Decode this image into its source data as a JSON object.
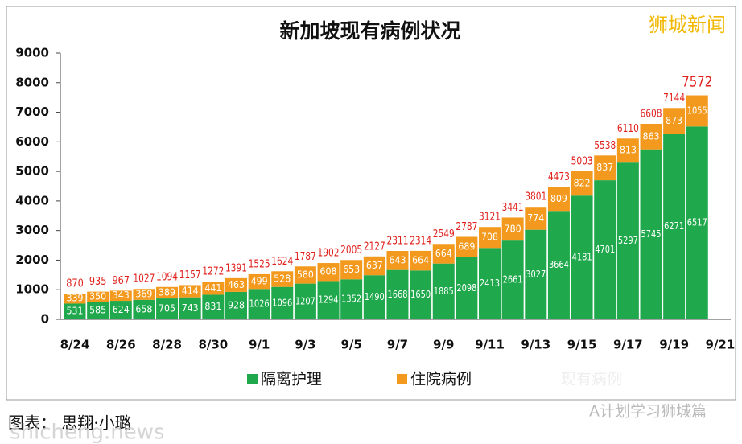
{
  "chart_data": {
    "type": "stacked-bar",
    "title": "新加坡现有病例状况",
    "categories": [
      "8/24",
      null,
      "8/26",
      null,
      "8/28",
      null,
      "8/30",
      null,
      "9/1",
      null,
      "9/3",
      null,
      "9/5",
      null,
      "9/7",
      null,
      "9/9",
      null,
      "9/11",
      null,
      "9/13",
      null,
      "9/15",
      null,
      "9/17",
      null,
      "9/19",
      null,
      "9/21"
    ],
    "series": [
      {
        "name": "隔离护理",
        "color": "#1fa84c",
        "values": [
          531,
          585,
          624,
          658,
          705,
          743,
          831,
          928,
          1026,
          1096,
          1207,
          1294,
          1352,
          1490,
          1668,
          1650,
          1885,
          2098,
          2413,
          2661,
          3027,
          3664,
          4181,
          4701,
          5297,
          5745,
          6271,
          6517,
          null
        ]
      },
      {
        "name": "住院病例",
        "color": "#f39a1e",
        "values": [
          339,
          350,
          343,
          369,
          389,
          414,
          441,
          463,
          499,
          528,
          580,
          608,
          653,
          637,
          643,
          664,
          664,
          689,
          708,
          780,
          774,
          809,
          822,
          837,
          813,
          863,
          873,
          1055,
          null
        ]
      }
    ],
    "totals": [
      870,
      935,
      967,
      1027,
      1094,
      1157,
      1272,
      1391,
      1525,
      1624,
      1787,
      1902,
      2005,
      2127,
      2311,
      2314,
      2549,
      2787,
      3121,
      3441,
      3801,
      4473,
      5003,
      5538,
      6110,
      6608,
      7144,
      7572,
      null
    ],
    "totals_color": "#e0201c",
    "ylim": [
      0,
      9000
    ],
    "yticks": [
      0,
      1000,
      2000,
      3000,
      4000,
      5000,
      6000,
      7000,
      8000,
      9000
    ],
    "watermark": "狮城新闻",
    "faint_text": "现有病例",
    "wechat": "A计划学习狮城篇",
    "caption": "图表： 思翔·小璐",
    "site": "shicheng.news"
  }
}
